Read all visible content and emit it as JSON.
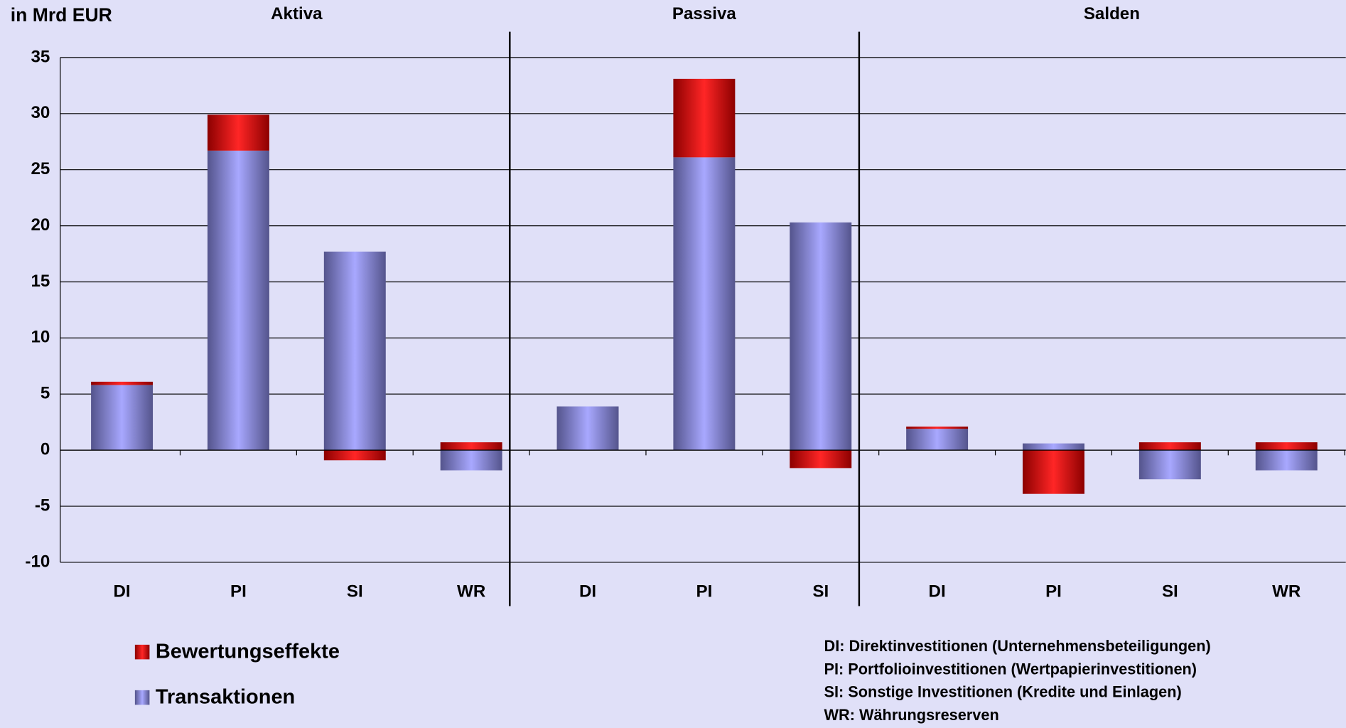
{
  "chart_data": {
    "type": "bar",
    "stacked": true,
    "ylabel": "in Mrd EUR",
    "groups": [
      {
        "name": "Aktiva",
        "categories": [
          "DI",
          "PI",
          "SI",
          "WR"
        ]
      },
      {
        "name": "Passiva",
        "categories": [
          "DI",
          "PI",
          "SI"
        ]
      },
      {
        "name": "Salden",
        "categories": [
          "DI",
          "PI",
          "SI",
          "WR"
        ]
      }
    ],
    "series": [
      {
        "name": "Transaktionen",
        "color": "#9999ff",
        "values": [
          5.8,
          26.7,
          17.7,
          -1.8,
          3.9,
          26.1,
          20.3,
          1.9,
          0.6,
          -2.6,
          -1.8
        ]
      },
      {
        "name": "Bewertungseffekte",
        "color": "#ff0000",
        "values": [
          0.3,
          3.2,
          -0.9,
          0.7,
          0,
          7.0,
          -1.6,
          0.2,
          -3.9,
          0.7,
          0.7
        ]
      }
    ],
    "legend_order": [
      1,
      0
    ],
    "ylim": [
      -10,
      35
    ],
    "yticks": [
      -10,
      -5,
      0,
      5,
      10,
      15,
      20,
      25,
      30,
      35
    ],
    "grid": true,
    "notes": [
      "DI: Direktinvestitionen (Unternehmensbeteiligungen)",
      "PI: Portfolioinvestitionen (Wertpapierinvestitionen)",
      "SI: Sonstige Investitionen (Kredite und Einlagen)",
      "WR: Währungsreserven"
    ]
  }
}
